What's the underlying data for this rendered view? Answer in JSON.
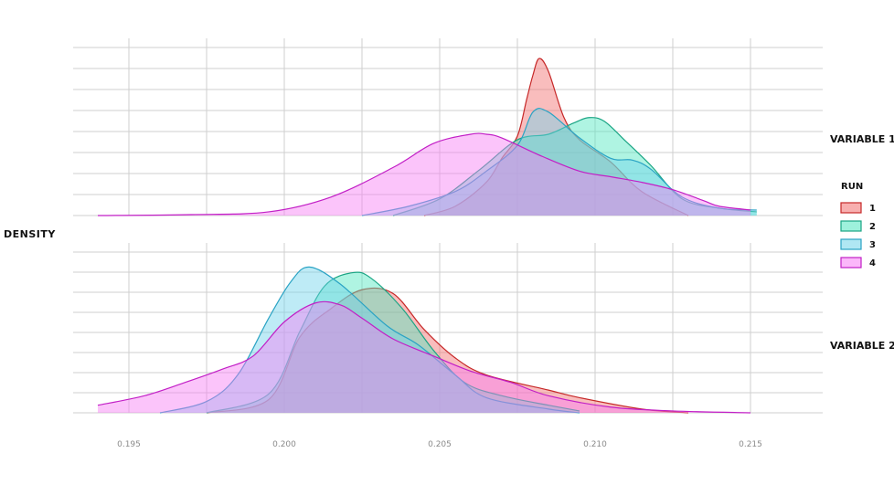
{
  "chart_data": {
    "type": "area",
    "chart_kind": "density (faceted)",
    "ylabel": "DENSITY",
    "xlim": [
      0.1935,
      0.2165
    ],
    "x_ticks": [
      {
        "value": 0.195,
        "label": "0.195"
      },
      {
        "value": 0.2,
        "label": "0.200"
      },
      {
        "value": 0.205,
        "label": "0.205"
      },
      {
        "value": 0.21,
        "label": "0.210"
      },
      {
        "value": 0.215,
        "label": "0.215"
      }
    ],
    "legend": {
      "title": "RUN",
      "placement": "right",
      "items": [
        {
          "label": "1",
          "fill": "#f26d6d",
          "stroke": "#c62828"
        },
        {
          "label": "2",
          "fill": "#4ee6bf",
          "stroke": "#1aa584"
        },
        {
          "label": "3",
          "fill": "#6fd3ea",
          "stroke": "#2aa3c4"
        },
        {
          "label": "4",
          "fill": "#f77cf5",
          "stroke": "#c21fc6"
        }
      ]
    },
    "facets": [
      {
        "label": "VARIABLE 1",
        "ylim": [
          0,
          8.7
        ],
        "series": [
          {
            "name": "1",
            "x": [
              0.2045,
              0.2055,
              0.2065,
              0.207,
              0.2075,
              0.2078,
              0.208,
              0.2082,
              0.2085,
              0.209,
              0.2095,
              0.2105,
              0.2115,
              0.213
            ],
            "y": [
              0,
              0.5,
              1.8,
              3.1,
              4.3,
              6.3,
              7.6,
              8.5,
              7.8,
              5.3,
              4.1,
              2.9,
              1.3,
              0
            ]
          },
          {
            "name": "2",
            "x": [
              0.2035,
              0.205,
              0.2063,
              0.2075,
              0.2085,
              0.2093,
              0.2098,
              0.2103,
              0.211,
              0.2118,
              0.2128,
              0.214,
              0.2152
            ],
            "y": [
              0,
              0.9,
              2.5,
              4.1,
              4.4,
              5.0,
              5.3,
              5.1,
              4.0,
              2.7,
              0.9,
              0.4,
              0.2
            ]
          },
          {
            "name": "3",
            "x": [
              0.2025,
              0.204,
              0.2055,
              0.2065,
              0.2075,
              0.208,
              0.2085,
              0.2095,
              0.2105,
              0.2112,
              0.2118,
              0.2128,
              0.214,
              0.2152
            ],
            "y": [
              0,
              0.5,
              1.3,
              2.4,
              3.8,
              5.6,
              5.6,
              4.2,
              3.1,
              3.0,
              2.5,
              1.0,
              0.4,
              0.3
            ]
          },
          {
            "name": "4",
            "x": [
              0.194,
              0.197,
              0.1995,
              0.2015,
              0.2035,
              0.2048,
              0.206,
              0.2065,
              0.207,
              0.2083,
              0.2095,
              0.2105,
              0.2115,
              0.2125,
              0.2135,
              0.214,
              0.215
            ],
            "y": [
              0,
              0.05,
              0.2,
              1.0,
              2.6,
              3.9,
              4.4,
              4.4,
              4.2,
              3.2,
              2.4,
              2.1,
              1.8,
              1.4,
              0.8,
              0.5,
              0.3
            ]
          }
        ]
      },
      {
        "label": "VARIABLE 2",
        "ylim": [
          0,
          8.2
        ],
        "series": [
          {
            "name": "1",
            "x": [
              0.1975,
              0.1995,
              0.2005,
              0.2015,
              0.2025,
              0.2035,
              0.2045,
              0.2055,
              0.2065,
              0.2085,
              0.2095,
              0.2115,
              0.213
            ],
            "y": [
              0,
              0.7,
              4.0,
              5.5,
              6.5,
              6.3,
              4.4,
              2.9,
              2.0,
              1.2,
              0.8,
              0.2,
              0
            ]
          },
          {
            "name": "2",
            "x": [
              0.1975,
              0.1995,
              0.2005,
              0.2013,
              0.2022,
              0.2028,
              0.2038,
              0.2048,
              0.2058,
              0.207,
              0.2085,
              0.2095
            ],
            "y": [
              0,
              1.0,
              4.3,
              6.7,
              7.4,
              7.1,
              5.5,
              3.3,
              1.6,
              0.9,
              0.4,
              0.1
            ]
          },
          {
            "name": "3",
            "x": [
              0.196,
              0.1975,
              0.1985,
              0.1995,
              0.2002,
              0.2008,
              0.2018,
              0.2033,
              0.2043,
              0.2055,
              0.2065,
              0.2085,
              0.2095
            ],
            "y": [
              0,
              0.6,
              2.0,
              5.0,
              6.9,
              7.7,
              6.8,
              4.6,
              3.6,
              2.0,
              0.8,
              0.2,
              0
            ]
          },
          {
            "name": "4",
            "x": [
              0.194,
              0.1955,
              0.1968,
              0.198,
              0.199,
              0.2,
              0.201,
              0.2018,
              0.2025,
              0.2035,
              0.2048,
              0.206,
              0.2073,
              0.2085,
              0.2105,
              0.2125,
              0.215
            ],
            "y": [
              0.4,
              0.9,
              1.6,
              2.3,
              3.0,
              4.8,
              5.8,
              5.7,
              5.0,
              3.9,
              3.0,
              2.2,
              1.6,
              0.9,
              0.3,
              0.1,
              0
            ]
          }
        ]
      }
    ]
  }
}
